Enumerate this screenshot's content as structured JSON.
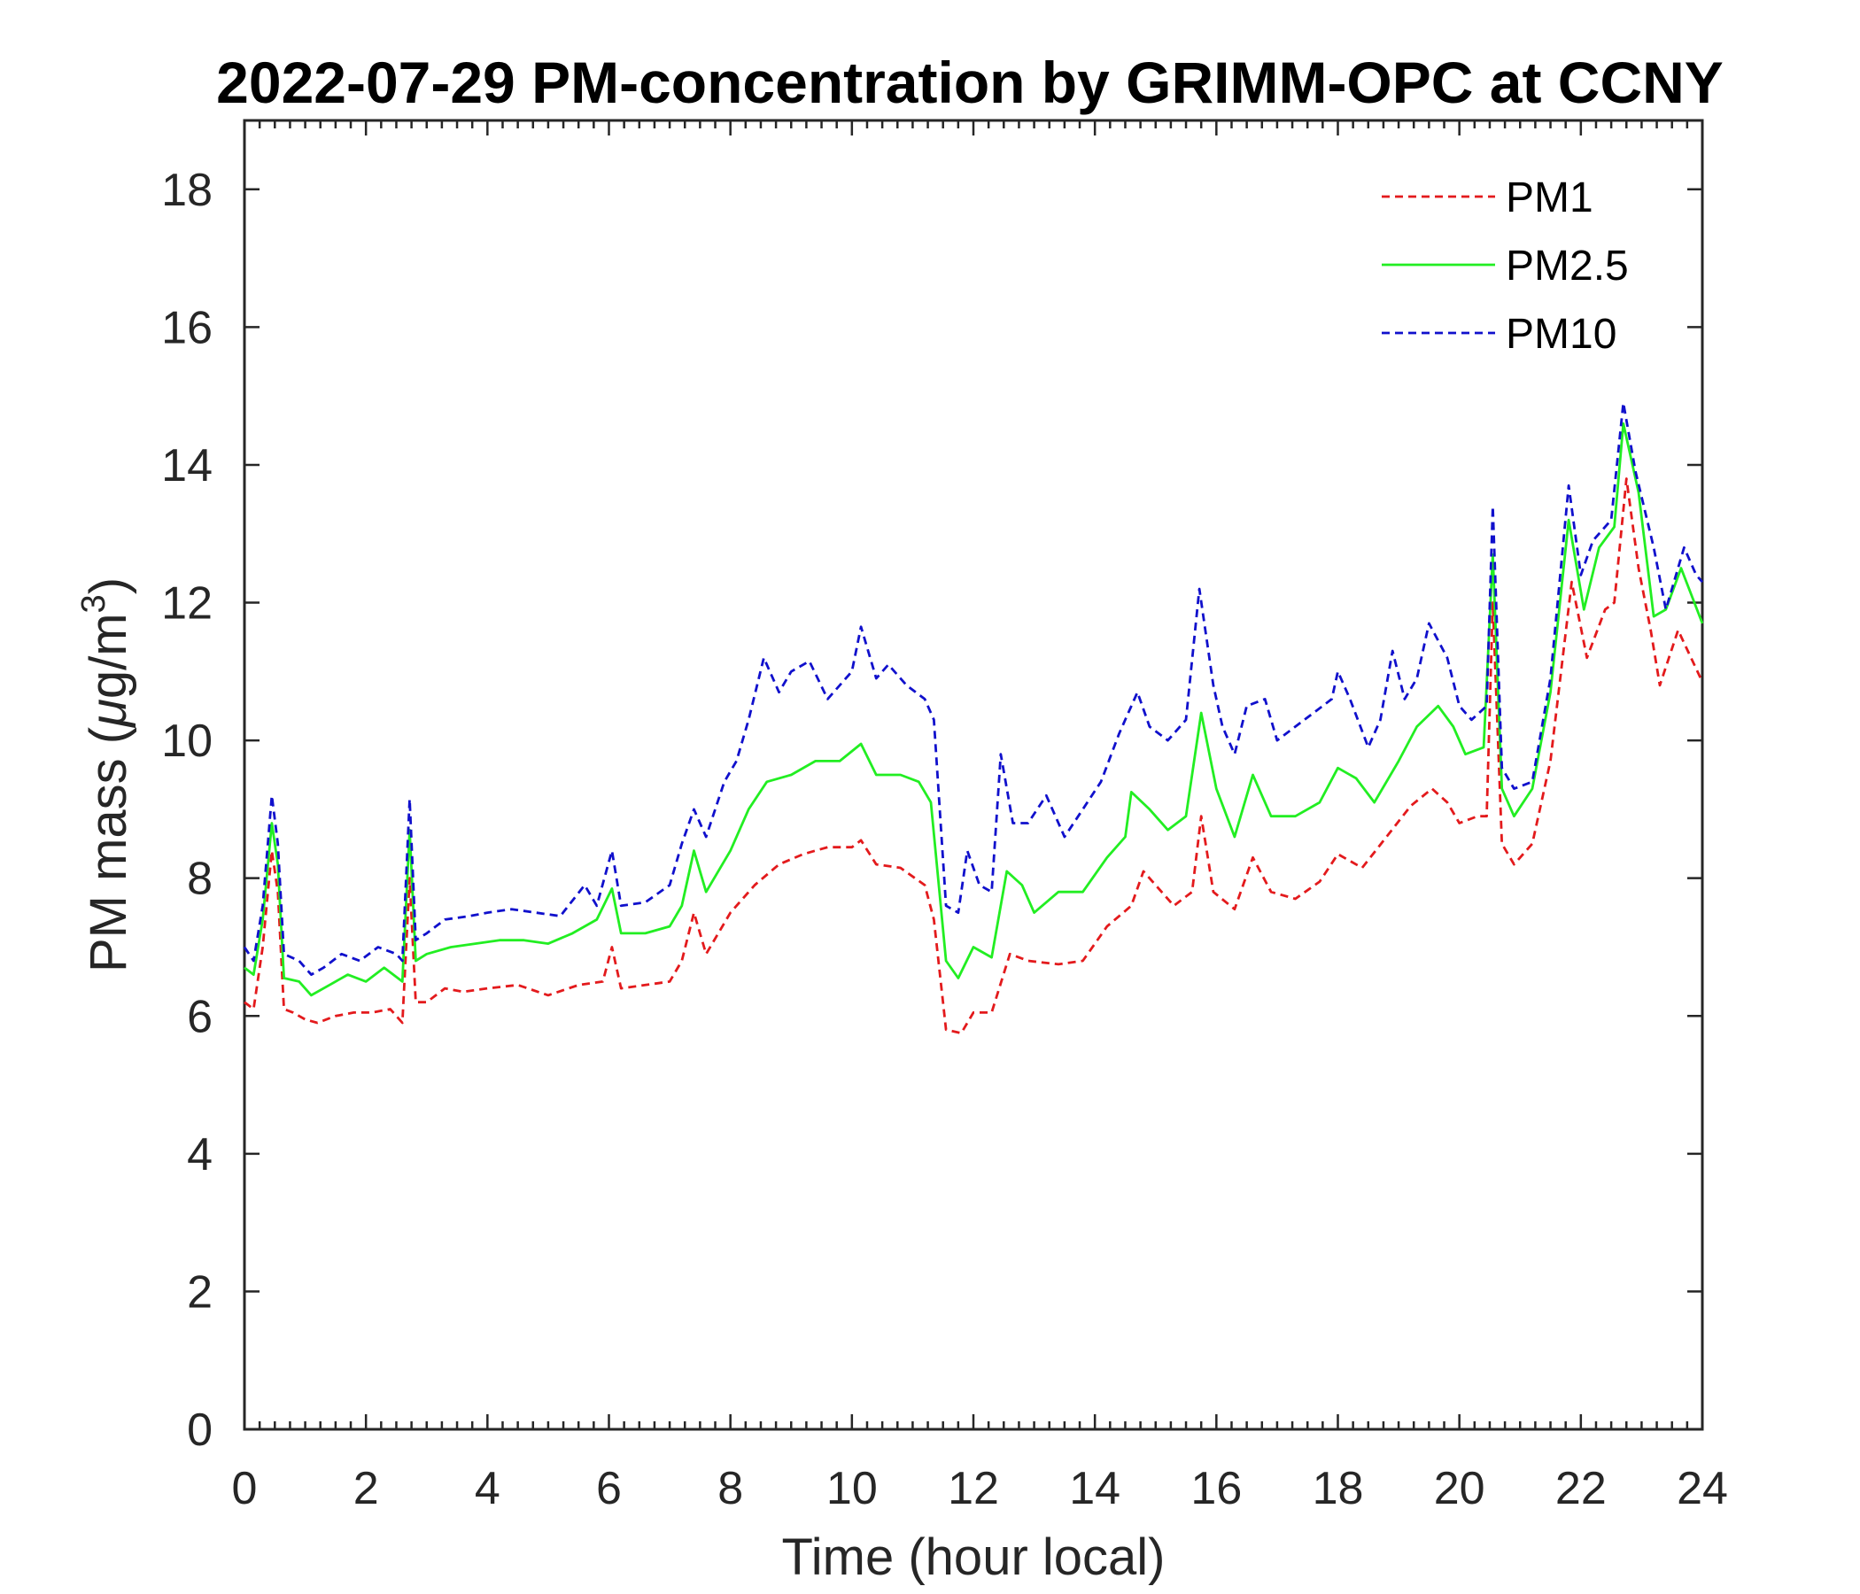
{
  "chart_data": {
    "type": "line",
    "title": "2022-07-29 PM-concentration by GRIMM-OPC at CCNY",
    "xlabel": "Time (hour local)",
    "ylabel_main": "PM mass (",
    "ylabel_mu": "μ",
    "ylabel_unit": "g/m",
    "ylabel_sup": "3",
    "ylabel_close": ")",
    "xlim": [
      0,
      24
    ],
    "ylim": [
      0,
      19
    ],
    "x_ticks": [
      0,
      2,
      4,
      6,
      8,
      10,
      12,
      14,
      16,
      18,
      20,
      22,
      24
    ],
    "y_ticks": [
      0,
      2,
      4,
      6,
      8,
      10,
      12,
      14,
      16,
      18
    ],
    "x_minor_step": 0.25,
    "grid": false,
    "legend_position": "top-right",
    "series": [
      {
        "name": "PM1",
        "color": "#e31a1c",
        "style": "dashed",
        "points": [
          [
            0,
            6.2
          ],
          [
            0.15,
            6.1
          ],
          [
            0.3,
            7.0
          ],
          [
            0.45,
            8.4
          ],
          [
            0.55,
            7.8
          ],
          [
            0.65,
            6.1
          ],
          [
            0.8,
            6.05
          ],
          [
            1.0,
            5.95
          ],
          [
            1.2,
            5.9
          ],
          [
            1.5,
            6.0
          ],
          [
            1.8,
            6.05
          ],
          [
            2.1,
            6.05
          ],
          [
            2.4,
            6.1
          ],
          [
            2.6,
            5.9
          ],
          [
            2.72,
            8.0
          ],
          [
            2.82,
            6.2
          ],
          [
            3.0,
            6.2
          ],
          [
            3.3,
            6.4
          ],
          [
            3.6,
            6.35
          ],
          [
            4.0,
            6.4
          ],
          [
            4.5,
            6.45
          ],
          [
            5.0,
            6.3
          ],
          [
            5.5,
            6.45
          ],
          [
            5.9,
            6.5
          ],
          [
            6.05,
            7.0
          ],
          [
            6.2,
            6.4
          ],
          [
            6.6,
            6.45
          ],
          [
            7.0,
            6.5
          ],
          [
            7.2,
            6.8
          ],
          [
            7.4,
            7.5
          ],
          [
            7.6,
            6.9
          ],
          [
            8.0,
            7.5
          ],
          [
            8.4,
            7.9
          ],
          [
            8.8,
            8.2
          ],
          [
            9.2,
            8.35
          ],
          [
            9.6,
            8.45
          ],
          [
            10.0,
            8.45
          ],
          [
            10.15,
            8.55
          ],
          [
            10.4,
            8.2
          ],
          [
            10.8,
            8.15
          ],
          [
            11.2,
            7.9
          ],
          [
            11.35,
            7.4
          ],
          [
            11.55,
            5.8
          ],
          [
            11.8,
            5.75
          ],
          [
            12.0,
            6.05
          ],
          [
            12.3,
            6.05
          ],
          [
            12.6,
            6.9
          ],
          [
            12.9,
            6.8
          ],
          [
            13.4,
            6.75
          ],
          [
            13.8,
            6.8
          ],
          [
            14.2,
            7.3
          ],
          [
            14.6,
            7.6
          ],
          [
            14.8,
            8.1
          ],
          [
            15.0,
            7.9
          ],
          [
            15.3,
            7.6
          ],
          [
            15.6,
            7.8
          ],
          [
            15.75,
            8.9
          ],
          [
            15.95,
            7.8
          ],
          [
            16.3,
            7.55
          ],
          [
            16.6,
            8.3
          ],
          [
            16.9,
            7.8
          ],
          [
            17.3,
            7.7
          ],
          [
            17.7,
            7.95
          ],
          [
            18.0,
            8.35
          ],
          [
            18.4,
            8.15
          ],
          [
            18.8,
            8.6
          ],
          [
            19.2,
            9.05
          ],
          [
            19.55,
            9.3
          ],
          [
            19.8,
            9.1
          ],
          [
            20.0,
            8.8
          ],
          [
            20.3,
            8.9
          ],
          [
            20.45,
            8.9
          ],
          [
            20.55,
            12.0
          ],
          [
            20.7,
            8.5
          ],
          [
            20.9,
            8.2
          ],
          [
            21.2,
            8.5
          ],
          [
            21.5,
            9.7
          ],
          [
            21.85,
            12.3
          ],
          [
            22.1,
            11.2
          ],
          [
            22.4,
            11.9
          ],
          [
            22.55,
            12.0
          ],
          [
            22.75,
            13.8
          ],
          [
            22.95,
            12.5
          ],
          [
            23.15,
            11.6
          ],
          [
            23.3,
            10.8
          ],
          [
            23.6,
            11.6
          ],
          [
            24.0,
            10.85
          ]
        ]
      },
      {
        "name": "PM2.5",
        "color": "#22ee22",
        "style": "solid",
        "points": [
          [
            0,
            6.7
          ],
          [
            0.15,
            6.6
          ],
          [
            0.3,
            7.4
          ],
          [
            0.45,
            8.8
          ],
          [
            0.55,
            8.2
          ],
          [
            0.65,
            6.55
          ],
          [
            0.9,
            6.5
          ],
          [
            1.1,
            6.3
          ],
          [
            1.4,
            6.45
          ],
          [
            1.7,
            6.6
          ],
          [
            2.0,
            6.5
          ],
          [
            2.3,
            6.7
          ],
          [
            2.6,
            6.5
          ],
          [
            2.72,
            8.7
          ],
          [
            2.82,
            6.8
          ],
          [
            3.0,
            6.9
          ],
          [
            3.4,
            7.0
          ],
          [
            3.8,
            7.05
          ],
          [
            4.2,
            7.1
          ],
          [
            4.6,
            7.1
          ],
          [
            5.0,
            7.05
          ],
          [
            5.4,
            7.2
          ],
          [
            5.8,
            7.4
          ],
          [
            6.05,
            7.85
          ],
          [
            6.2,
            7.2
          ],
          [
            6.6,
            7.2
          ],
          [
            7.0,
            7.3
          ],
          [
            7.2,
            7.6
          ],
          [
            7.4,
            8.4
          ],
          [
            7.6,
            7.8
          ],
          [
            8.0,
            8.4
          ],
          [
            8.3,
            9.0
          ],
          [
            8.6,
            9.4
          ],
          [
            9.0,
            9.5
          ],
          [
            9.4,
            9.7
          ],
          [
            9.8,
            9.7
          ],
          [
            10.15,
            9.95
          ],
          [
            10.4,
            9.5
          ],
          [
            10.8,
            9.5
          ],
          [
            11.1,
            9.4
          ],
          [
            11.3,
            9.1
          ],
          [
            11.55,
            6.8
          ],
          [
            11.75,
            6.55
          ],
          [
            12.0,
            7.0
          ],
          [
            12.3,
            6.85
          ],
          [
            12.55,
            8.1
          ],
          [
            12.8,
            7.9
          ],
          [
            13.0,
            7.5
          ],
          [
            13.4,
            7.8
          ],
          [
            13.8,
            7.8
          ],
          [
            14.2,
            8.3
          ],
          [
            14.5,
            8.6
          ],
          [
            14.6,
            9.25
          ],
          [
            14.9,
            9.0
          ],
          [
            15.2,
            8.7
          ],
          [
            15.5,
            8.9
          ],
          [
            15.75,
            10.4
          ],
          [
            16.0,
            9.3
          ],
          [
            16.3,
            8.6
          ],
          [
            16.6,
            9.5
          ],
          [
            16.9,
            8.9
          ],
          [
            17.3,
            8.9
          ],
          [
            17.7,
            9.1
          ],
          [
            18.0,
            9.6
          ],
          [
            18.3,
            9.45
          ],
          [
            18.6,
            9.1
          ],
          [
            19.0,
            9.7
          ],
          [
            19.3,
            10.2
          ],
          [
            19.65,
            10.5
          ],
          [
            19.9,
            10.2
          ],
          [
            20.1,
            9.8
          ],
          [
            20.4,
            9.9
          ],
          [
            20.55,
            12.7
          ],
          [
            20.7,
            9.3
          ],
          [
            20.9,
            8.9
          ],
          [
            21.2,
            9.3
          ],
          [
            21.5,
            10.7
          ],
          [
            21.8,
            13.2
          ],
          [
            22.05,
            11.9
          ],
          [
            22.3,
            12.8
          ],
          [
            22.55,
            13.1
          ],
          [
            22.7,
            14.6
          ],
          [
            22.95,
            13.6
          ],
          [
            23.2,
            11.8
          ],
          [
            23.4,
            11.9
          ],
          [
            23.65,
            12.5
          ],
          [
            24.0,
            11.7
          ]
        ]
      },
      {
        "name": "PM10",
        "color": "#1010cc",
        "style": "dashed",
        "points": [
          [
            0,
            7.0
          ],
          [
            0.15,
            6.8
          ],
          [
            0.3,
            7.6
          ],
          [
            0.45,
            9.2
          ],
          [
            0.55,
            8.5
          ],
          [
            0.65,
            6.9
          ],
          [
            0.9,
            6.8
          ],
          [
            1.1,
            6.6
          ],
          [
            1.3,
            6.7
          ],
          [
            1.6,
            6.9
          ],
          [
            1.9,
            6.8
          ],
          [
            2.2,
            7.0
          ],
          [
            2.5,
            6.9
          ],
          [
            2.6,
            6.8
          ],
          [
            2.72,
            9.15
          ],
          [
            2.82,
            7.1
          ],
          [
            3.0,
            7.2
          ],
          [
            3.3,
            7.4
          ],
          [
            3.7,
            7.45
          ],
          [
            4.0,
            7.5
          ],
          [
            4.4,
            7.55
          ],
          [
            4.8,
            7.5
          ],
          [
            5.2,
            7.45
          ],
          [
            5.6,
            7.9
          ],
          [
            5.8,
            7.6
          ],
          [
            6.05,
            8.4
          ],
          [
            6.2,
            7.6
          ],
          [
            6.6,
            7.65
          ],
          [
            7.0,
            7.9
          ],
          [
            7.2,
            8.5
          ],
          [
            7.4,
            9.0
          ],
          [
            7.6,
            8.6
          ],
          [
            7.9,
            9.4
          ],
          [
            8.1,
            9.7
          ],
          [
            8.3,
            10.3
          ],
          [
            8.55,
            11.2
          ],
          [
            8.8,
            10.7
          ],
          [
            9.0,
            11.0
          ],
          [
            9.3,
            11.15
          ],
          [
            9.6,
            10.6
          ],
          [
            10.0,
            11.0
          ],
          [
            10.15,
            11.65
          ],
          [
            10.4,
            10.9
          ],
          [
            10.6,
            11.1
          ],
          [
            10.9,
            10.8
          ],
          [
            11.2,
            10.6
          ],
          [
            11.35,
            10.3
          ],
          [
            11.55,
            7.6
          ],
          [
            11.75,
            7.5
          ],
          [
            11.9,
            8.4
          ],
          [
            12.1,
            7.9
          ],
          [
            12.3,
            7.8
          ],
          [
            12.45,
            9.8
          ],
          [
            12.65,
            8.8
          ],
          [
            12.9,
            8.8
          ],
          [
            13.2,
            9.2
          ],
          [
            13.5,
            8.6
          ],
          [
            13.8,
            9.0
          ],
          [
            14.1,
            9.4
          ],
          [
            14.4,
            10.1
          ],
          [
            14.7,
            10.7
          ],
          [
            14.9,
            10.2
          ],
          [
            15.2,
            10.0
          ],
          [
            15.5,
            10.3
          ],
          [
            15.72,
            12.2
          ],
          [
            15.95,
            10.8
          ],
          [
            16.1,
            10.2
          ],
          [
            16.3,
            9.8
          ],
          [
            16.5,
            10.5
          ],
          [
            16.8,
            10.6
          ],
          [
            17.0,
            10.0
          ],
          [
            17.3,
            10.2
          ],
          [
            17.6,
            10.4
          ],
          [
            17.9,
            10.6
          ],
          [
            18.0,
            11.0
          ],
          [
            18.2,
            10.6
          ],
          [
            18.5,
            9.9
          ],
          [
            18.7,
            10.3
          ],
          [
            18.9,
            11.3
          ],
          [
            19.1,
            10.6
          ],
          [
            19.3,
            10.9
          ],
          [
            19.5,
            11.7
          ],
          [
            19.8,
            11.2
          ],
          [
            20.0,
            10.5
          ],
          [
            20.2,
            10.3
          ],
          [
            20.45,
            10.5
          ],
          [
            20.55,
            13.4
          ],
          [
            20.7,
            9.6
          ],
          [
            20.9,
            9.3
          ],
          [
            21.2,
            9.4
          ],
          [
            21.5,
            10.9
          ],
          [
            21.8,
            13.7
          ],
          [
            22.0,
            12.4
          ],
          [
            22.2,
            12.9
          ],
          [
            22.5,
            13.2
          ],
          [
            22.7,
            14.9
          ],
          [
            22.9,
            13.9
          ],
          [
            23.2,
            12.8
          ],
          [
            23.4,
            11.9
          ],
          [
            23.7,
            12.8
          ],
          [
            23.9,
            12.4
          ],
          [
            24.0,
            12.3
          ]
        ]
      }
    ]
  }
}
